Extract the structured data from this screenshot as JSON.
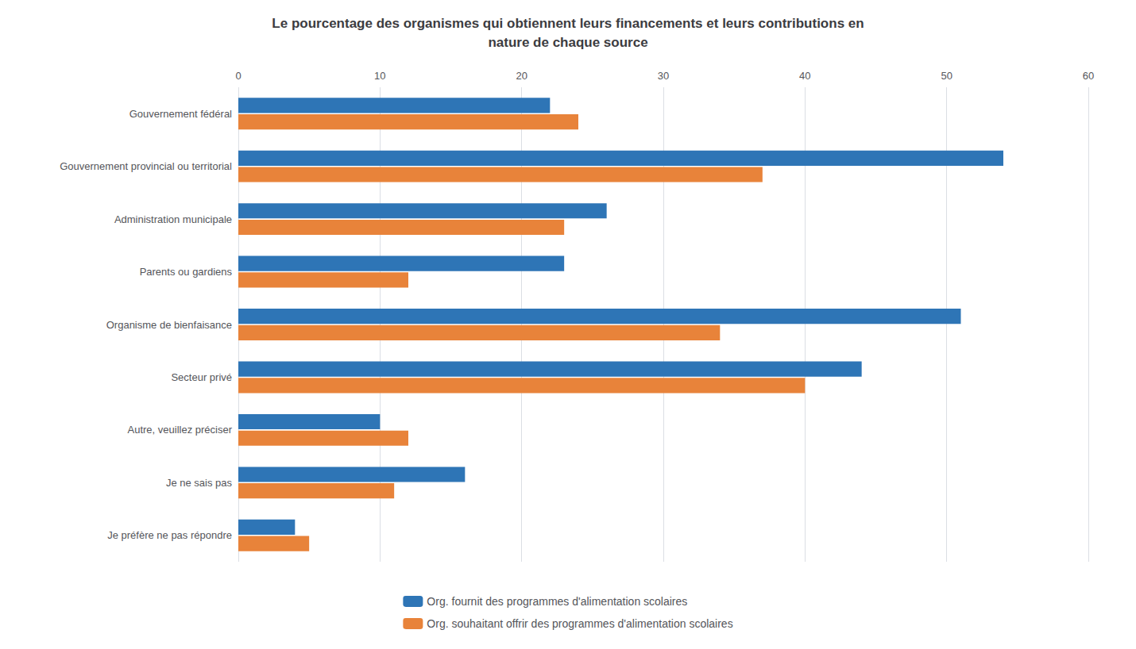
{
  "chart_data": {
    "type": "bar",
    "orientation": "horizontal",
    "title": "Le pourcentage des organismes qui obtiennent leurs financements et leurs contributions en\nnature de chaque source",
    "categories": [
      "Gouvernement fédéral",
      "Gouvernement provincial ou territorial",
      "Administration municipale",
      "Parents ou gardiens",
      "Organisme de bienfaisance",
      "Secteur privé",
      "Autre, veuillez préciser",
      "Je ne sais pas",
      "Je préfère ne pas répondre"
    ],
    "series": [
      {
        "name": "Org. fournit des programmes d'alimentation scolaires",
        "color": "#2E75B6",
        "values": [
          22,
          54,
          26,
          23,
          51,
          44,
          10,
          16,
          4
        ]
      },
      {
        "name": "Org. souhaitant offrir des programmes d'alimentation scolaires",
        "color": "#E8833A",
        "values": [
          24,
          37,
          23,
          12,
          34,
          40,
          12,
          11,
          5
        ]
      }
    ],
    "xlim": [
      0,
      60
    ],
    "xticks": [
      0,
      10,
      20,
      30,
      40,
      50,
      60
    ],
    "grid": true,
    "legend": "bottom"
  }
}
